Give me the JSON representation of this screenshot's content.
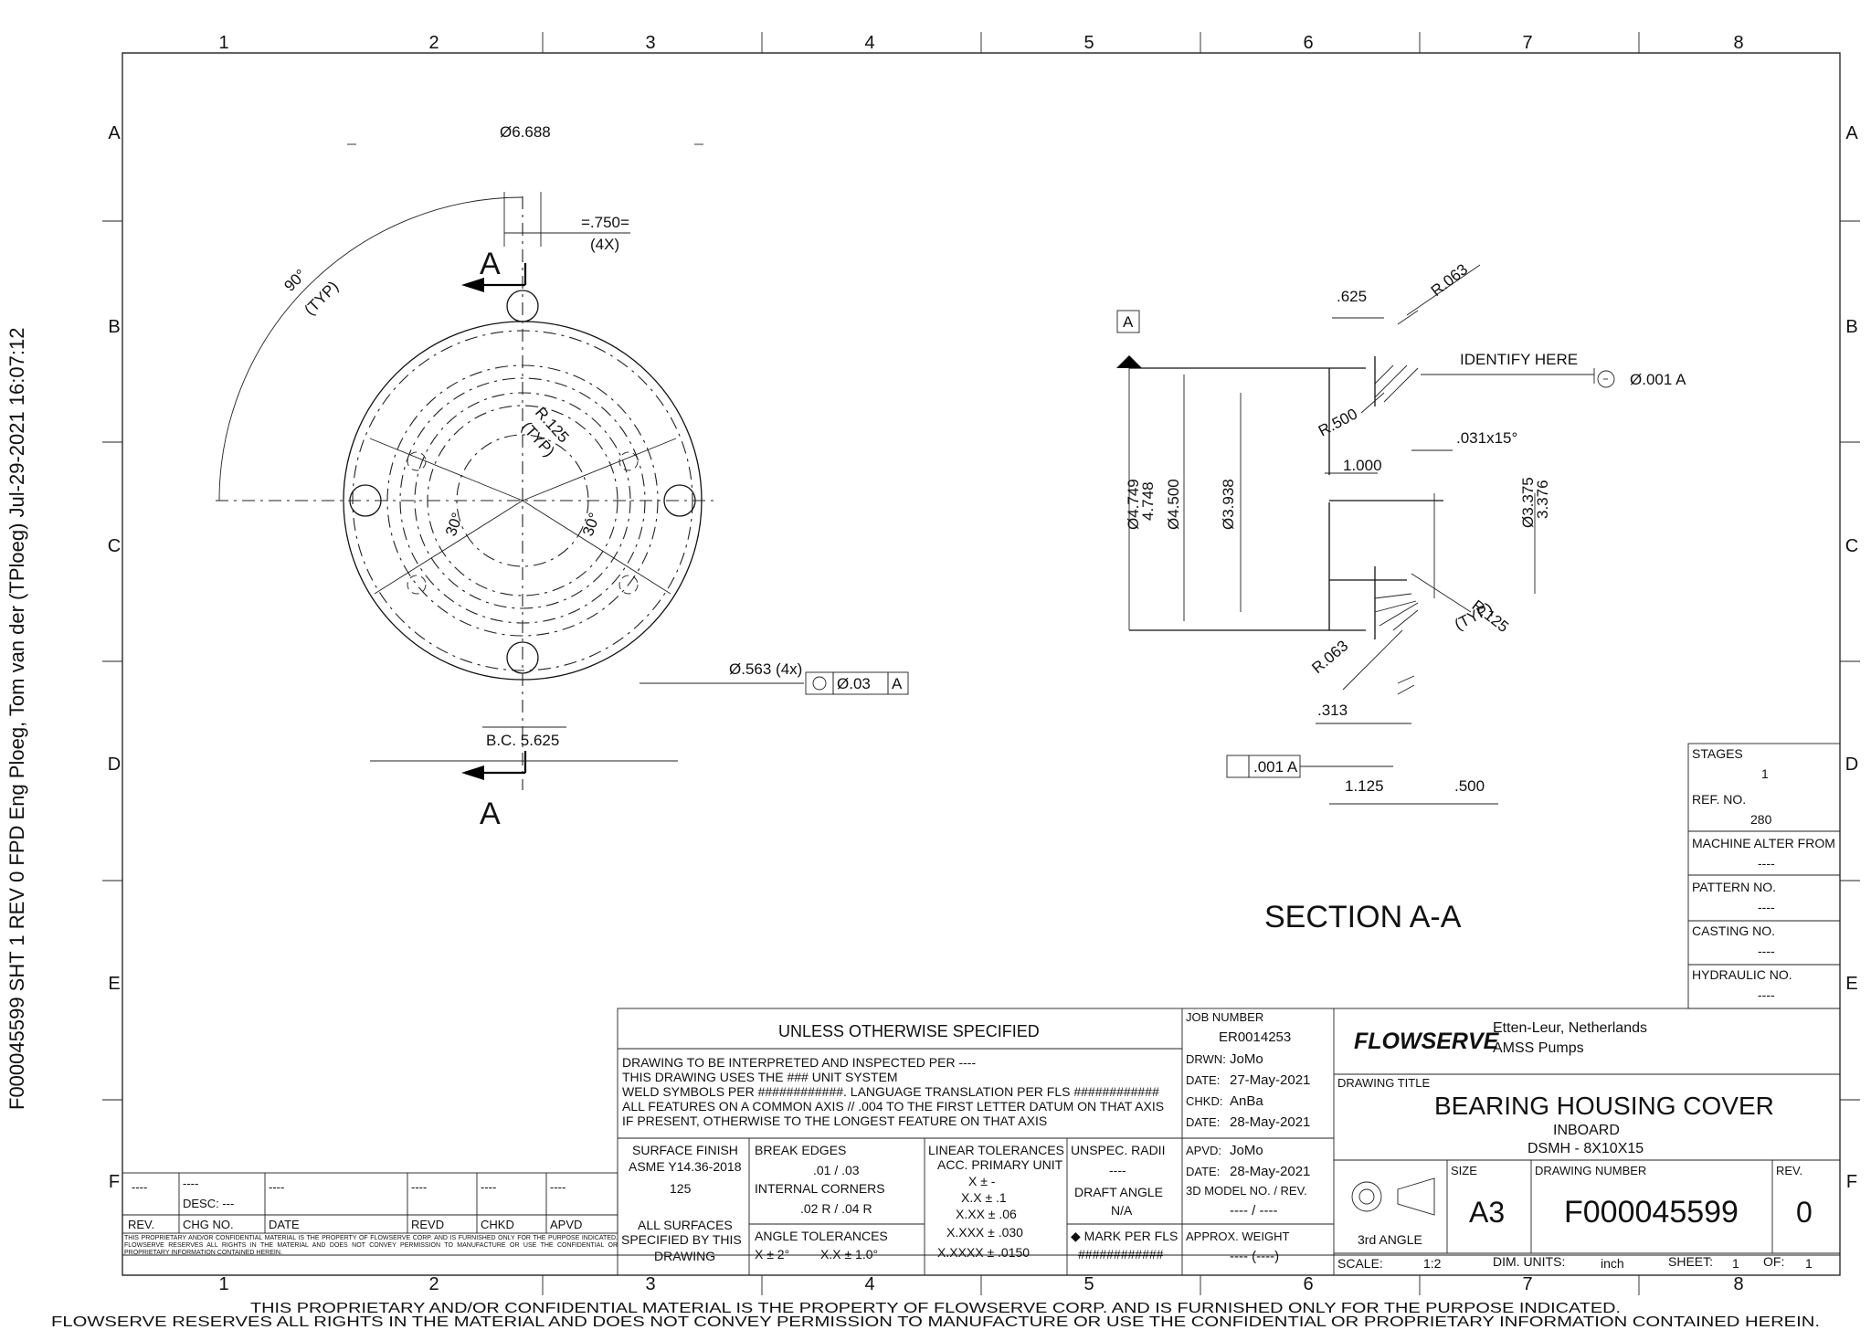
{
  "side_stamp": "F000045599 SHT 1 REV 0 FPD Eng  Ploeg, Tom van der (TPloeg)  Jul-29-2021 16:07:12",
  "frame": {
    "columns": [
      "1",
      "2",
      "3",
      "4",
      "5",
      "6",
      "7",
      "8"
    ],
    "rows": [
      "A",
      "B",
      "C",
      "D",
      "E",
      "F"
    ]
  },
  "plan_view": {
    "dia_overall": "Ø6.688",
    "slot_width": "=.750=",
    "slot_count": "(4X)",
    "angle": "90°",
    "angle_typ": "(TYP)",
    "radius": "R.125",
    "radius_typ": "(TYP)",
    "angle_left": "30°",
    "angle_right": "30°",
    "hole": "Ø.563 (4x)",
    "hole_fcf_tol": "Ø.03",
    "hole_fcf_datum": "A",
    "bolt_circle": "B.C. 5.625",
    "section_letter_top": "A",
    "section_letter_bottom": "A"
  },
  "section_view": {
    "datum": "A",
    "dim_625": ".625",
    "r063_top": "R.063",
    "identify": "IDENTIFY HERE",
    "runout": "Ø.001 A",
    "r500": "R.500",
    "chamfer": ".031x15°",
    "dim_1000": "1.000",
    "d4749": "Ø4.749",
    "d4748": "4.748",
    "d4500": "Ø4.500",
    "d3938": "Ø3.938",
    "d3375": "Ø3.375",
    "d3376": "3.376",
    "r125": "R.125",
    "r125_typ": "(TYP)",
    "r063_bottom": "R.063",
    "dim_313": ".313",
    "flat": ".001 A",
    "dim_1125": "1.125",
    "dim_500": ".500",
    "title": "SECTION A-A"
  },
  "info_panel": {
    "stages_label": "STAGES",
    "stages": "1",
    "ref_label": "REF. NO.",
    "ref": "280",
    "alter_label": "MACHINE ALTER FROM",
    "alter": "----",
    "pattern_label": "PATTERN NO.",
    "pattern": "----",
    "casting_label": "CASTING NO.",
    "casting": "----",
    "hydraulic_label": "HYDRAULIC NO.",
    "hydraulic": "----"
  },
  "notes": {
    "header": "UNLESS OTHERWISE SPECIFIED",
    "line1": "DRAWING TO BE INTERPRETED AND INSPECTED PER ----",
    "line2": "THIS DRAWING USES THE ### UNIT SYSTEM",
    "line3": "WELD SYMBOLS PER ############. LANGUAGE TRANSLATION PER FLS ############",
    "line4": "ALL FEATURES ON A COMMON AXIS // .004  TO THE FIRST LETTER DATUM ON THAT AXIS",
    "line5": "IF PRESENT, OTHERWISE TO THE LONGEST FEATURE ON THAT AXIS"
  },
  "tolerances": {
    "surface_label": "SURFACE FINISH",
    "surface_std": "ASME Y14.36-2018",
    "surface_value": "125",
    "all_surfaces": "ALL SURFACES",
    "specified": "SPECIFIED BY THIS",
    "drawing": "DRAWING",
    "break_label": "BREAK EDGES",
    "break_value": ".01 / .03",
    "corners_label": "INTERNAL CORNERS",
    "corners_value": ".02 R / .04 R",
    "angle_label": "ANGLE TOLERANCES",
    "angle_value1": "X ± 2°",
    "angle_value2": "X.X ± 1.0°",
    "linear_label": "LINEAR TOLERANCES",
    "linear_unit": "ACC. PRIMARY UNIT",
    "lin1": "X ± -",
    "lin2": "X.X ± .1",
    "lin3": "X.XX ± .06",
    "lin4": "X.XXX ± .030",
    "lin5": "X.XXXX ± .0150",
    "radii_label": "UNSPEC. RADII",
    "radii_value": "----",
    "draft_label": "DRAFT ANGLE",
    "draft_value": "N/A",
    "mark_label": "◆ MARK PER FLS",
    "mark_value": "############"
  },
  "approvals": {
    "job_label": "JOB NUMBER",
    "job": "ER0014253",
    "drwn_label": "DRWN:",
    "drwn": "JoMo",
    "date1_label": "DATE:",
    "date1": "27-May-2021",
    "chkd_label": "CHKD:",
    "chkd": "AnBa",
    "date2_label": "DATE:",
    "date2": "28-May-2021",
    "apvd_label": "APVD:",
    "apvd": "JoMo",
    "date3_label": "DATE:",
    "date3": "28-May-2021",
    "model_label": "3D MODEL NO. / REV.",
    "model": "---- / ----",
    "weight_label": "APPROX. WEIGHT",
    "weight": "---- (----)"
  },
  "title_block": {
    "logo": "FLOWSERVE",
    "location": "Etten-Leur, Netherlands",
    "division": "AMSS Pumps",
    "title_label": "DRAWING TITLE",
    "title": "BEARING HOUSING COVER",
    "subtitle": "INBOARD",
    "model": "DSMH - 8X10X15",
    "size_label": "SIZE",
    "size": "A3",
    "number_label": "DRAWING NUMBER",
    "number": "F000045599",
    "rev_label": "REV.",
    "rev": "0",
    "projection": "3rd ANGLE",
    "scale_label": "SCALE:",
    "scale": "1:2",
    "units_label": "DIM. UNITS:",
    "units": "inch",
    "sheet_label": "SHEET:",
    "sheet": "1",
    "of_label": "OF:",
    "of": "1"
  },
  "revision_block": {
    "values": [
      "----",
      "----",
      "----",
      "----",
      "----",
      "----"
    ],
    "desc": "DESC: ---",
    "headers": [
      "REV.",
      "CHG NO.",
      "DATE",
      "REVD",
      "CHKD",
      "APVD"
    ],
    "notice": "THIS PROPRIETARY AND/OR CONFIDENTIAL MATERIAL IS THE PROPERTY OF FLOWSERVE CORP. AND IS FURNISHED ONLY FOR THE PURPOSE INDICATED.  FLOWSERVE RESERVES ALL RIGHTS IN THE MATERIAL AND DOES NOT CONVEY PERMISSION TO MANUFACTURE OR USE THE CONFIDENTIAL OR PROPRIETARY INFORMATION CONTAINED HEREIN."
  },
  "footer": {
    "line1": "THIS PROPRIETARY AND/OR CONFIDENTIAL MATERIAL IS THE PROPERTY OF FLOWSERVE CORP. AND IS FURNISHED ONLY FOR THE PURPOSE INDICATED.",
    "line2": "FLOWSERVE RESERVES ALL RIGHTS IN THE MATERIAL AND DOES NOT CONVEY PERMISSION TO MANUFACTURE OR USE THE CONFIDENTIAL OR PROPRIETARY INFORMATION CONTAINED HEREIN."
  }
}
